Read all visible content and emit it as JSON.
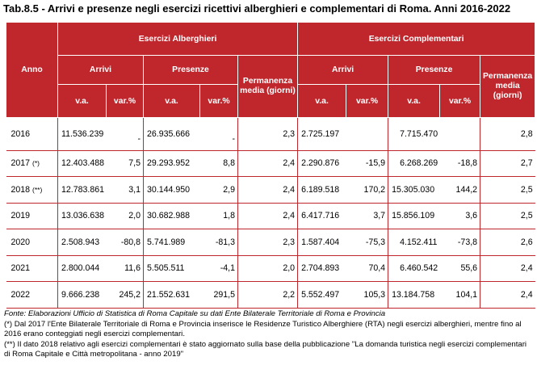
{
  "title": "Tab.8.5 - Arrivi e presenze negli esercizi ricettivi alberghieri e complementari di Roma. Anni 2016-2022",
  "header": {
    "anno": "Anno",
    "group1": "Esercizi Alberghieri",
    "group2": "Esercizi Complementari",
    "arrivi": "Arrivi",
    "presenze": "Presenze",
    "permanenza": "Permanenza media (giorni)",
    "va": "v.a.",
    "var": "var.%"
  },
  "rows": [
    {
      "year": "2016",
      "suffix": "",
      "alb_arr_va": "11.536.239",
      "alb_arr_var": "-",
      "alb_pres_va": "26.935.666",
      "alb_pres_var": "-",
      "alb_perm": "2,3",
      "comp_arr_va": "2.725.197",
      "comp_arr_var": "",
      "comp_pres_va": "7.715.470",
      "comp_pres_var": "",
      "comp_perm": "2,8"
    },
    {
      "year": "2017",
      "suffix": "(*)",
      "alb_arr_va": "12.403.488",
      "alb_arr_var": "7,5",
      "alb_pres_va": "29.293.952",
      "alb_pres_var": "8,8",
      "alb_perm": "2,4",
      "comp_arr_va": "2.290.876",
      "comp_arr_var": "-15,9",
      "comp_pres_va": "6.268.269",
      "comp_pres_var": "-18,8",
      "comp_perm": "2,7"
    },
    {
      "year": "2018",
      "suffix": "(**)",
      "alb_arr_va": "12.783.861",
      "alb_arr_var": "3,1",
      "alb_pres_va": "30.144.950",
      "alb_pres_var": "2,9",
      "alb_perm": "2,4",
      "comp_arr_va": "6.189.518",
      "comp_arr_var": "170,2",
      "comp_pres_va": "15.305.030",
      "comp_pres_var": "144,2",
      "comp_perm": "2,5"
    },
    {
      "year": "2019",
      "suffix": "",
      "alb_arr_va": "13.036.638",
      "alb_arr_var": "2,0",
      "alb_pres_va": "30.682.988",
      "alb_pres_var": "1,8",
      "alb_perm": "2,4",
      "comp_arr_va": "6.417.716",
      "comp_arr_var": "3,7",
      "comp_pres_va": "15.856.109",
      "comp_pres_var": "3,6",
      "comp_perm": "2,5"
    },
    {
      "year": "2020",
      "suffix": "",
      "alb_arr_va": "2.508.943",
      "alb_arr_var": "-80,8",
      "alb_pres_va": "5.741.989",
      "alb_pres_var": "-81,3",
      "alb_perm": "2,3",
      "comp_arr_va": "1.587.404",
      "comp_arr_var": "-75,3",
      "comp_pres_va": "4.152.411",
      "comp_pres_var": "-73,8",
      "comp_perm": "2,6"
    },
    {
      "year": "2021",
      "suffix": "",
      "alb_arr_va": "2.800.044",
      "alb_arr_var": "11,6",
      "alb_pres_va": "5.505.511",
      "alb_pres_var": "-4,1",
      "alb_perm": "2,0",
      "comp_arr_va": "2.704.893",
      "comp_arr_var": "70,4",
      "comp_pres_va": "6.460.542",
      "comp_pres_var": "55,6",
      "comp_perm": "2,4"
    },
    {
      "year": "2022",
      "suffix": "",
      "alb_arr_va": "9.666.238",
      "alb_arr_var": "245,2",
      "alb_pres_va": "21.552.631",
      "alb_pres_var": "291,5",
      "alb_perm": "2,2",
      "comp_arr_va": "5.552.497",
      "comp_arr_var": "105,3",
      "comp_pres_va": "13.184.758",
      "comp_pres_var": "104,1",
      "comp_perm": "2,4"
    }
  ],
  "notes": {
    "source": "Fonte: Elaborazioni Ufficio di Statistica di Roma Capitale su dati Ente Bilaterale Territoriale di Roma e Provincia",
    "note1": "(*) Dal 2017 l'Ente Bilaterale Territoriale di Roma e Provincia inserisce le Residenze Turistico Alberghiere (RTA) negli esercizi alberghieri, mentre fino al 2016 erano conteggiati negli esercizi complementari.",
    "note2": "(**) Il dato 2018 relativo agli esercizi complementari è stato aggiornato sulla base della pubblicazione \"La domanda turistica negli esercizi complementari di Roma Capitale e Città metropolitana - anno 2019\""
  }
}
